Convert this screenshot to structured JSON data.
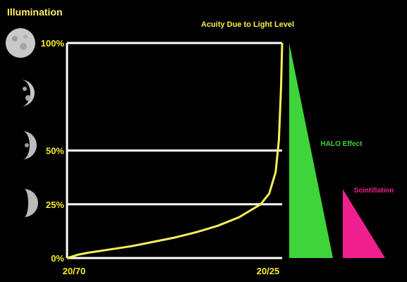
{
  "title": "Illumination",
  "colors": {
    "background": "#000000",
    "grid": "#ffffff",
    "tick_text": "#f6ec2a",
    "curve": "#f8ef5e",
    "halo": "#3fd53a",
    "scintillation": "#f01f8e",
    "heading_text": "#f8f04a",
    "halo_text": "#3fd53a",
    "scint_text": "#f01f8e",
    "title_text": "#fff16a"
  },
  "moon_icons": [
    "full-moon-icon",
    "gibbous-moon-icon",
    "half-moon-icon",
    "crescent-moon-icon"
  ],
  "chart_data": {
    "type": "line",
    "title": "Acuity Due to Light Level",
    "xlabel": "",
    "ylabel": "",
    "x_ticks": [
      "20/70",
      "20/25"
    ],
    "y_ticks": [
      {
        "label": "0%",
        "value": 0
      },
      {
        "label": "25%",
        "value": 25
      },
      {
        "label": "50%",
        "value": 50
      },
      {
        "label": "100%",
        "value": 100
      }
    ],
    "ylim": [
      0,
      100
    ],
    "grid": true,
    "series": [
      {
        "x": [
          0,
          0.05,
          0.1,
          0.2,
          0.3,
          0.4,
          0.5,
          0.6,
          0.7,
          0.8,
          0.85,
          0.9,
          0.94,
          0.97,
          0.985,
          0.995,
          1.0
        ],
        "values": [
          0,
          1.5,
          2.5,
          4,
          5.5,
          7.5,
          9.5,
          12,
          15,
          19,
          22,
          25,
          30,
          40,
          55,
          80,
          100
        ]
      }
    ],
    "annotations": [
      {
        "label": "HALO Effect",
        "shape": "right-triangle",
        "from": 100,
        "to": 0
      },
      {
        "label": "Scintillation",
        "shape": "right-triangle",
        "from": 32,
        "to": 0
      }
    ]
  }
}
